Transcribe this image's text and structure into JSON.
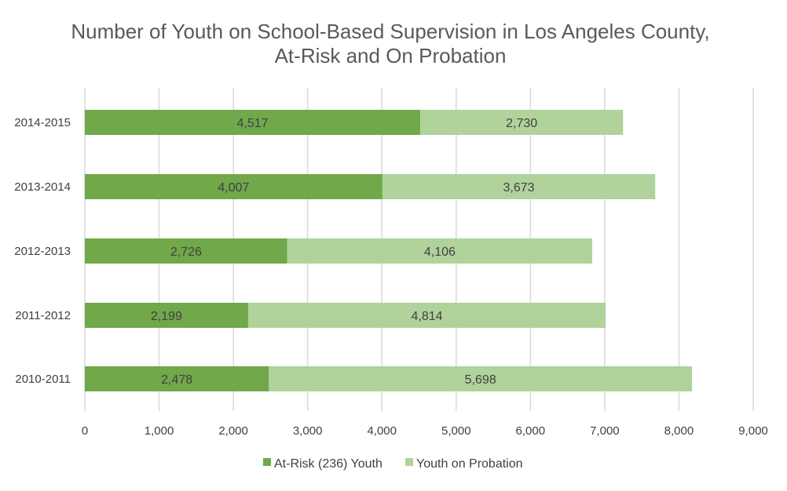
{
  "chart_data": {
    "type": "bar",
    "orientation": "horizontal",
    "stacked": true,
    "title_lines": [
      "Number of Youth on School-Based Supervision in Los Angeles County,",
      "At-Risk and On Probation"
    ],
    "categories": [
      "2014-2015",
      "2013-2014",
      "2012-2013",
      "2011-2012",
      "2010-2011"
    ],
    "series": [
      {
        "name": "At-Risk (236) Youth",
        "color": "#70a84a",
        "values": [
          4517,
          4007,
          2726,
          2199,
          2478
        ],
        "labels": [
          "4,517",
          "4,007",
          "2,726",
          "2,199",
          "2,478"
        ]
      },
      {
        "name": "Youth on Probation",
        "color": "#b0d29b",
        "values": [
          2730,
          3673,
          4106,
          4814,
          5698
        ],
        "labels": [
          "2,730",
          "3,673",
          "4,106",
          "4,814",
          "5,698"
        ]
      }
    ],
    "xlim": [
      0,
      9000
    ],
    "xticks": [
      0,
      1000,
      2000,
      3000,
      4000,
      5000,
      6000,
      7000,
      8000,
      9000
    ],
    "xtick_labels": [
      "0",
      "1,000",
      "2,000",
      "3,000",
      "4,000",
      "5,000",
      "6,000",
      "7,000",
      "8,000",
      "9,000"
    ],
    "grid": true,
    "legend_position": "bottom"
  }
}
